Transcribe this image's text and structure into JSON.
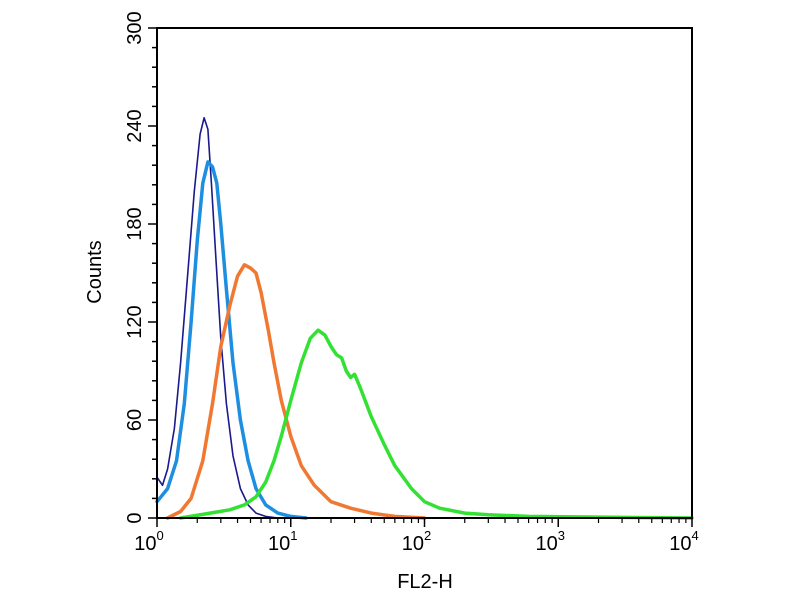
{
  "chart_data": {
    "type": "line",
    "xlabel": "FL2-H",
    "ylabel": "Counts",
    "x_scale": "log",
    "xlim": [
      1,
      10000
    ],
    "ylim": [
      0,
      300
    ],
    "x_ticks": [
      {
        "value": 1,
        "base": "10",
        "exp": "0"
      },
      {
        "value": 10,
        "base": "10",
        "exp": "1"
      },
      {
        "value": 100,
        "base": "10",
        "exp": "2"
      },
      {
        "value": 1000,
        "base": "10",
        "exp": "3"
      },
      {
        "value": 10000,
        "base": "10",
        "exp": "4"
      }
    ],
    "y_ticks": [
      0,
      60,
      120,
      180,
      240,
      300
    ],
    "grid": false,
    "series": [
      {
        "color": "#1a1a8c",
        "x": [
          1.0,
          1.1,
          1.2,
          1.35,
          1.5,
          1.7,
          1.9,
          2.1,
          2.25,
          2.4,
          2.55,
          2.75,
          3.0,
          3.3,
          3.7,
          4.2,
          4.8,
          5.5,
          6.5,
          8.0,
          10.0
        ],
        "y": [
          25,
          20,
          30,
          55,
          95,
          150,
          200,
          235,
          245,
          238,
          205,
          160,
          110,
          70,
          38,
          18,
          8,
          3,
          1,
          0,
          0
        ]
      },
      {
        "color": "#1e8fe0",
        "x": [
          1.0,
          1.2,
          1.4,
          1.6,
          1.8,
          2.0,
          2.2,
          2.4,
          2.6,
          2.8,
          3.0,
          3.3,
          3.7,
          4.2,
          4.8,
          5.5,
          6.5,
          8.0,
          10.0,
          13.0
        ],
        "y": [
          10,
          18,
          35,
          70,
          120,
          170,
          205,
          218,
          215,
          205,
          180,
          140,
          95,
          60,
          35,
          18,
          8,
          3,
          1,
          0
        ]
      },
      {
        "color": "#f07830",
        "x": [
          1.2,
          1.5,
          1.8,
          2.2,
          2.6,
          3.0,
          3.5,
          4.0,
          4.5,
          5.0,
          5.5,
          6.0,
          6.8,
          7.5,
          8.5,
          10.0,
          12.0,
          15.0,
          20.0,
          28.0,
          40.0,
          60.0,
          100.0
        ],
        "y": [
          0,
          4,
          12,
          35,
          70,
          105,
          130,
          148,
          155,
          153,
          150,
          138,
          115,
          95,
          72,
          50,
          32,
          20,
          10,
          6,
          3,
          1,
          0
        ]
      },
      {
        "color": "#33e133",
        "x": [
          1.5,
          2.5,
          3.5,
          4.5,
          5.5,
          6.5,
          7.5,
          8.5,
          10.0,
          12.0,
          14.0,
          16.0,
          18.0,
          20.0,
          22.0,
          24.0,
          26.0,
          28.0,
          30.0,
          33.0,
          40.0,
          50.0,
          60.0,
          80.0,
          100.0,
          130.0,
          200.0,
          300.0,
          600.0,
          10000.0
        ],
        "y": [
          0,
          3,
          5,
          8,
          13,
          22,
          35,
          50,
          72,
          95,
          110,
          115,
          112,
          105,
          100,
          98,
          90,
          86,
          88,
          80,
          62,
          45,
          32,
          18,
          10,
          6,
          3,
          2,
          1,
          0
        ]
      }
    ]
  }
}
